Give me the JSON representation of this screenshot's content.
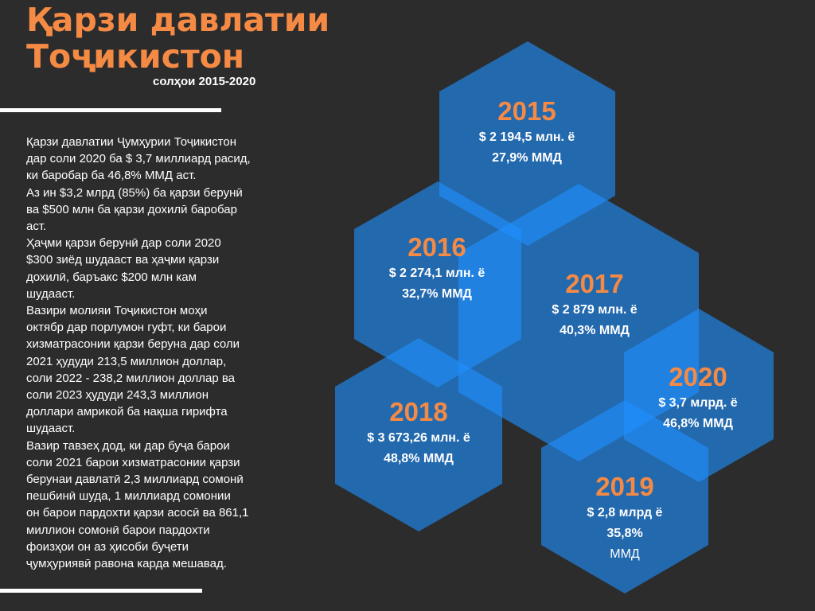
{
  "header": {
    "title_line1": "Қарзи давлатии",
    "title_line2": "Тоҷикистон",
    "subtitle": "солҳои 2015-2020"
  },
  "body_text": "Қарзи давлатии Ҷумҳурии Тоҷикистон\nдар соли 2020 ба $ 3,7 миллиард расид,\nки баробар ба 46,8% ММД  аст.\nАз ин $3,2 млрд (85%) ба қарзи берунӣ\n ва $500 млн ба қарзи дохилӣ баробар\nаст.\nҲаҷми қарзи берунӣ дар соли 2020\n$300 зиёд шудааст ва ҳаҷми қарзи\nдохилӣ, баръакс $200 млн кам\nшудааст.\n Вазири молияи Тоҷикистон моҳи\nоктябр дар порлумон гуфт, ки барои\nхизматрасонии қарзи беруна дар соли\n2021 ҳудуди 213,5 миллион  доллар,\nсоли 2022 -  238,2 миллион доллар ва\nсоли 2023 ҳудуди 243,3 миллион\nдоллари амрикой ба нақша гирифта\nшудааст.\nВазир  тавзеҳ дод, ки дар буҷа барои\nсоли 2021 барои хизматрасонии қарзи\nберунаи давлатӣ 2,3 миллиард сомонӣ\nпешбинӣ шуда, 1 миллиард сомонии\nон барои пардохти қарзи асосӣ ва 861,1\nмиллион сомонӣ барои пардохти\nфоизҳои он аз ҳисоби буҷети\nҷумҳуриявӣ равона карда мешавад.",
  "colors": {
    "accent": "#f58a45",
    "hex_fill": "#1e90ff",
    "background": "#2c2c2c"
  },
  "hexes": [
    {
      "year": "2015",
      "line1": "$ 2 194,5 млн. ё",
      "line2": "27,9% ММД",
      "line3": ""
    },
    {
      "year": "2016",
      "line1": "$ 2 274,1 млн. ё",
      "line2": "32,7% ММД",
      "line3": ""
    },
    {
      "year": "2017",
      "line1": "$ 2 879 млн. ё",
      "line2": "40,3% ММД",
      "line3": ""
    },
    {
      "year": "2018",
      "line1": "$ 3 673,26 млн. ё",
      "line2": "48,8% ММД",
      "line3": ""
    },
    {
      "year": "2020",
      "line1": "$ 3,7 млрд. ё",
      "line2": " 46,8% ММД",
      "line3": ""
    },
    {
      "year": "2019",
      "line1": "$  2,8 млрд  ё",
      "line2": "35,8%",
      "line3": "ММД"
    }
  ]
}
